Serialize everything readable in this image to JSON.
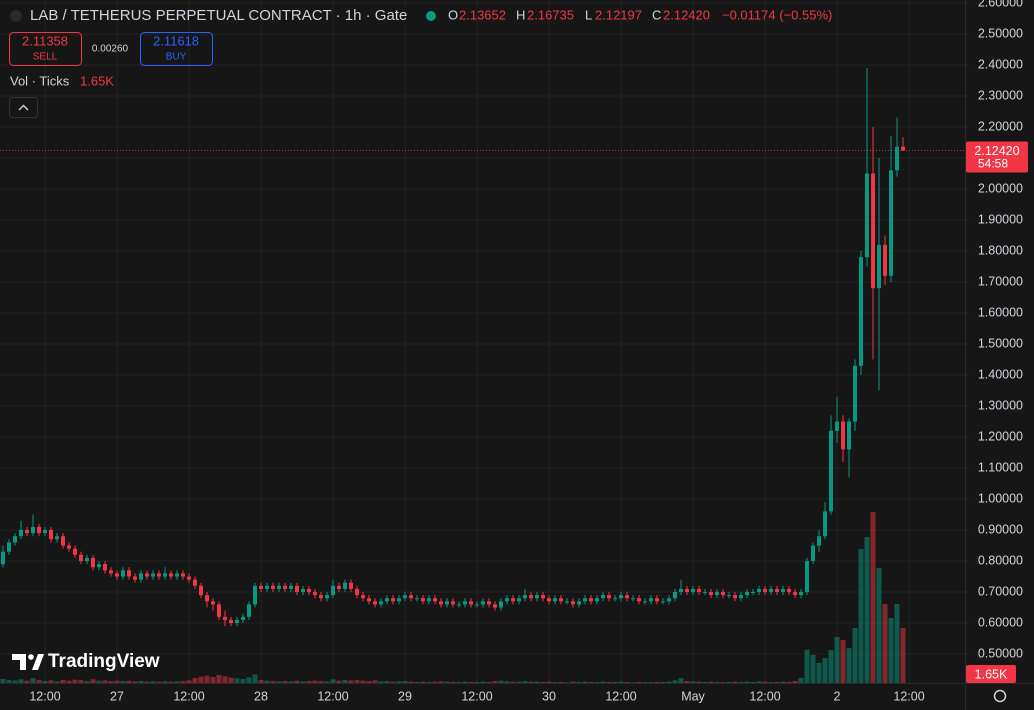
{
  "chart_data": {
    "type": "candlestick",
    "title": "LAB / TETHERUS PERPETUAL CONTRACT · 1h · Gate",
    "ohlc_labels": [
      "O",
      "H",
      "L",
      "C"
    ],
    "legend_values": [
      "2.13652",
      "2.16735",
      "2.12197",
      "2.12420"
    ],
    "change": "−0.01174 (−0.55%)",
    "sell": {
      "price": 2.11358,
      "label": "SELL"
    },
    "spread": "0.00260",
    "buy": {
      "price": 2.11618,
      "label": "BUY"
    },
    "volume_title": "Vol · Ticks",
    "volume_label": "1.65K",
    "countdown": "54:58",
    "logo": "TradingView",
    "up_color": "#089981",
    "down_color": "#f23645",
    "grid": true,
    "xlim": [
      -0.5,
      160.33
    ],
    "ylim": [
      0.4065,
      2.6097
    ],
    "volume_ylim": [
      0,
      6000
    ],
    "xticks": [
      {
        "value": 7,
        "label": "12:00"
      },
      {
        "value": 19,
        "label": "27"
      },
      {
        "value": 31,
        "label": "12:00"
      },
      {
        "value": 43,
        "label": "28"
      },
      {
        "value": 55,
        "label": "12:00"
      },
      {
        "value": 67,
        "label": "29"
      },
      {
        "value": 79,
        "label": "12:00"
      },
      {
        "value": 91,
        "label": "30"
      },
      {
        "value": 103,
        "label": "12:00"
      },
      {
        "value": 115,
        "label": "May"
      },
      {
        "value": 127,
        "label": "12:00"
      },
      {
        "value": 139,
        "label": "2"
      },
      {
        "value": 151,
        "label": "12:00"
      }
    ],
    "yticks": [
      {
        "value": 0.5,
        "label": "0.50000"
      },
      {
        "value": 0.6,
        "label": "0.60000"
      },
      {
        "value": 0.7,
        "label": "0.70000"
      },
      {
        "value": 0.8,
        "label": "0.80000"
      },
      {
        "value": 0.9,
        "label": "0.90000"
      },
      {
        "value": 1.0,
        "label": "1.00000"
      },
      {
        "value": 1.1,
        "label": "1.10000"
      },
      {
        "value": 1.2,
        "label": "1.20000"
      },
      {
        "value": 1.3,
        "label": "1.30000"
      },
      {
        "value": 1.4,
        "label": "1.40000"
      },
      {
        "value": 1.5,
        "label": "1.50000"
      },
      {
        "value": 1.6,
        "label": "1.60000"
      },
      {
        "value": 1.7,
        "label": "1.70000"
      },
      {
        "value": 1.8,
        "label": "1.80000"
      },
      {
        "value": 1.9,
        "label": "1.90000"
      },
      {
        "value": 2.0,
        "label": "2.00000"
      },
      {
        "value": 2.1,
        "label": "2.10000"
      },
      {
        "value": 2.2,
        "label": "2.20000"
      },
      {
        "value": 2.3,
        "label": "2.30000"
      },
      {
        "value": 2.4,
        "label": "2.40000"
      },
      {
        "value": 2.5,
        "label": "2.50000"
      },
      {
        "value": 2.6,
        "label": "2.60000"
      }
    ],
    "open": [
      0.79,
      0.83,
      0.86,
      0.88,
      0.9,
      0.89,
      0.91,
      0.89,
      0.9,
      0.87,
      0.88,
      0.85,
      0.84,
      0.82,
      0.8,
      0.81,
      0.78,
      0.79,
      0.77,
      0.76,
      0.75,
      0.77,
      0.75,
      0.74,
      0.76,
      0.75,
      0.76,
      0.75,
      0.76,
      0.75,
      0.76,
      0.75,
      0.74,
      0.72,
      0.69,
      0.67,
      0.66,
      0.62,
      0.61,
      0.6,
      0.61,
      0.62,
      0.66,
      0.72,
      0.71,
      0.72,
      0.71,
      0.72,
      0.71,
      0.72,
      0.7,
      0.71,
      0.7,
      0.69,
      0.68,
      0.69,
      0.72,
      0.71,
      0.73,
      0.71,
      0.69,
      0.68,
      0.67,
      0.66,
      0.67,
      0.68,
      0.67,
      0.68,
      0.69,
      0.68,
      0.68,
      0.67,
      0.68,
      0.67,
      0.66,
      0.67,
      0.66,
      0.66,
      0.67,
      0.66,
      0.66,
      0.67,
      0.66,
      0.65,
      0.67,
      0.68,
      0.67,
      0.68,
      0.69,
      0.68,
      0.69,
      0.68,
      0.67,
      0.68,
      0.67,
      0.67,
      0.66,
      0.67,
      0.68,
      0.67,
      0.68,
      0.69,
      0.68,
      0.68,
      0.69,
      0.68,
      0.68,
      0.67,
      0.67,
      0.68,
      0.67,
      0.67,
      0.68,
      0.7,
      0.71,
      0.7,
      0.71,
      0.7,
      0.7,
      0.69,
      0.7,
      0.69,
      0.69,
      0.68,
      0.69,
      0.7,
      0.7,
      0.71,
      0.7,
      0.71,
      0.7,
      0.71,
      0.7,
      0.69,
      0.7,
      0.8,
      0.85,
      0.88,
      0.96,
      1.22,
      1.25,
      1.16,
      1.25,
      1.43,
      1.78,
      2.05,
      1.68,
      1.82,
      1.72,
      2.06,
      2.13652
    ],
    "high": [
      0.85,
      0.87,
      0.89,
      0.93,
      0.91,
      0.95,
      0.92,
      0.91,
      0.91,
      0.89,
      0.89,
      0.86,
      0.85,
      0.83,
      0.82,
      0.82,
      0.8,
      0.8,
      0.78,
      0.77,
      0.78,
      0.78,
      0.76,
      0.77,
      0.77,
      0.77,
      0.77,
      0.78,
      0.77,
      0.77,
      0.77,
      0.76,
      0.75,
      0.73,
      0.7,
      0.68,
      0.67,
      0.64,
      0.62,
      0.62,
      0.63,
      0.67,
      0.73,
      0.73,
      0.73,
      0.73,
      0.73,
      0.73,
      0.73,
      0.73,
      0.72,
      0.72,
      0.71,
      0.7,
      0.7,
      0.74,
      0.73,
      0.74,
      0.74,
      0.72,
      0.7,
      0.69,
      0.68,
      0.68,
      0.69,
      0.69,
      0.69,
      0.7,
      0.7,
      0.69,
      0.69,
      0.69,
      0.69,
      0.68,
      0.68,
      0.68,
      0.67,
      0.68,
      0.68,
      0.67,
      0.68,
      0.68,
      0.67,
      0.68,
      0.69,
      0.69,
      0.69,
      0.71,
      0.7,
      0.7,
      0.7,
      0.69,
      0.69,
      0.69,
      0.68,
      0.68,
      0.68,
      0.69,
      0.69,
      0.69,
      0.7,
      0.7,
      0.69,
      0.7,
      0.7,
      0.69,
      0.69,
      0.68,
      0.69,
      0.69,
      0.68,
      0.69,
      0.71,
      0.74,
      0.72,
      0.72,
      0.72,
      0.71,
      0.71,
      0.71,
      0.71,
      0.7,
      0.7,
      0.7,
      0.71,
      0.71,
      0.72,
      0.72,
      0.72,
      0.72,
      0.72,
      0.72,
      0.71,
      0.71,
      0.81,
      0.86,
      0.9,
      0.99,
      1.27,
      1.33,
      1.27,
      1.26,
      1.45,
      1.8,
      2.39,
      2.2,
      2.1,
      1.85,
      2.17,
      2.23,
      2.16735
    ],
    "low": [
      0.78,
      0.82,
      0.85,
      0.87,
      0.88,
      0.88,
      0.88,
      0.88,
      0.86,
      0.86,
      0.84,
      0.83,
      0.81,
      0.79,
      0.79,
      0.77,
      0.77,
      0.76,
      0.75,
      0.74,
      0.74,
      0.74,
      0.73,
      0.73,
      0.74,
      0.74,
      0.74,
      0.74,
      0.74,
      0.74,
      0.74,
      0.73,
      0.71,
      0.68,
      0.65,
      0.64,
      0.61,
      0.59,
      0.59,
      0.59,
      0.6,
      0.61,
      0.65,
      0.7,
      0.7,
      0.7,
      0.7,
      0.7,
      0.7,
      0.69,
      0.69,
      0.69,
      0.68,
      0.67,
      0.67,
      0.68,
      0.7,
      0.7,
      0.7,
      0.68,
      0.67,
      0.66,
      0.65,
      0.65,
      0.66,
      0.66,
      0.66,
      0.67,
      0.67,
      0.67,
      0.66,
      0.66,
      0.66,
      0.65,
      0.65,
      0.65,
      0.65,
      0.65,
      0.65,
      0.65,
      0.65,
      0.65,
      0.64,
      0.64,
      0.66,
      0.66,
      0.66,
      0.67,
      0.67,
      0.67,
      0.67,
      0.66,
      0.66,
      0.66,
      0.66,
      0.65,
      0.65,
      0.66,
      0.66,
      0.66,
      0.67,
      0.67,
      0.67,
      0.67,
      0.67,
      0.67,
      0.66,
      0.66,
      0.66,
      0.66,
      0.66,
      0.66,
      0.67,
      0.69,
      0.69,
      0.69,
      0.69,
      0.69,
      0.68,
      0.68,
      0.68,
      0.68,
      0.67,
      0.67,
      0.68,
      0.69,
      0.69,
      0.69,
      0.69,
      0.69,
      0.69,
      0.69,
      0.68,
      0.68,
      0.69,
      0.79,
      0.83,
      0.87,
      0.95,
      1.18,
      1.12,
      1.07,
      1.22,
      1.4,
      1.75,
      1.45,
      1.35,
      1.69,
      1.7,
      2.04,
      2.12197
    ],
    "close": [
      0.83,
      0.86,
      0.88,
      0.9,
      0.89,
      0.91,
      0.89,
      0.9,
      0.87,
      0.88,
      0.85,
      0.84,
      0.82,
      0.8,
      0.81,
      0.78,
      0.79,
      0.77,
      0.76,
      0.75,
      0.77,
      0.75,
      0.74,
      0.76,
      0.75,
      0.76,
      0.75,
      0.76,
      0.75,
      0.76,
      0.75,
      0.74,
      0.72,
      0.69,
      0.67,
      0.66,
      0.62,
      0.61,
      0.6,
      0.61,
      0.62,
      0.66,
      0.72,
      0.71,
      0.72,
      0.71,
      0.72,
      0.71,
      0.72,
      0.7,
      0.71,
      0.7,
      0.69,
      0.68,
      0.69,
      0.72,
      0.71,
      0.73,
      0.71,
      0.69,
      0.68,
      0.67,
      0.66,
      0.67,
      0.68,
      0.67,
      0.68,
      0.69,
      0.68,
      0.68,
      0.67,
      0.68,
      0.67,
      0.66,
      0.67,
      0.66,
      0.66,
      0.67,
      0.66,
      0.66,
      0.67,
      0.66,
      0.65,
      0.67,
      0.68,
      0.67,
      0.68,
      0.69,
      0.68,
      0.69,
      0.68,
      0.67,
      0.68,
      0.67,
      0.67,
      0.66,
      0.67,
      0.68,
      0.67,
      0.68,
      0.69,
      0.68,
      0.68,
      0.69,
      0.68,
      0.68,
      0.67,
      0.67,
      0.68,
      0.67,
      0.67,
      0.68,
      0.7,
      0.71,
      0.7,
      0.71,
      0.7,
      0.7,
      0.69,
      0.7,
      0.69,
      0.69,
      0.68,
      0.69,
      0.7,
      0.7,
      0.71,
      0.7,
      0.71,
      0.7,
      0.71,
      0.7,
      0.69,
      0.7,
      0.8,
      0.85,
      0.88,
      0.96,
      1.22,
      1.25,
      1.16,
      1.25,
      1.43,
      1.78,
      2.05,
      1.68,
      1.82,
      1.72,
      2.06,
      2.13652,
      2.1242
    ],
    "volume": [
      120,
      90,
      80,
      110,
      70,
      140,
      90,
      60,
      80,
      50,
      90,
      70,
      100,
      90,
      60,
      110,
      70,
      80,
      60,
      70,
      60,
      70,
      50,
      60,
      40,
      50,
      40,
      50,
      40,
      50,
      60,
      80,
      150,
      190,
      220,
      180,
      240,
      200,
      160,
      140,
      120,
      170,
      260,
      90,
      70,
      60,
      50,
      60,
      50,
      70,
      50,
      60,
      70,
      60,
      50,
      110,
      70,
      90,
      80,
      90,
      70,
      60,
      80,
      50,
      60,
      40,
      50,
      60,
      40,
      30,
      40,
      30,
      40,
      50,
      40,
      30,
      30,
      40,
      30,
      30,
      40,
      30,
      60,
      70,
      50,
      40,
      40,
      60,
      40,
      40,
      30,
      40,
      30,
      30,
      20,
      40,
      30,
      40,
      30,
      30,
      40,
      30,
      30,
      40,
      30,
      20,
      30,
      30,
      30,
      30,
      30,
      40,
      80,
      140,
      60,
      50,
      40,
      30,
      40,
      30,
      30,
      30,
      40,
      30,
      40,
      30,
      50,
      40,
      30,
      30,
      40,
      30,
      60,
      150,
      1000,
      840,
      600,
      750,
      990,
      1380,
      1290,
      1050,
      1650,
      4020,
      4380,
      5130,
      3450,
      2370,
      1950,
      2370,
      1650
    ]
  }
}
